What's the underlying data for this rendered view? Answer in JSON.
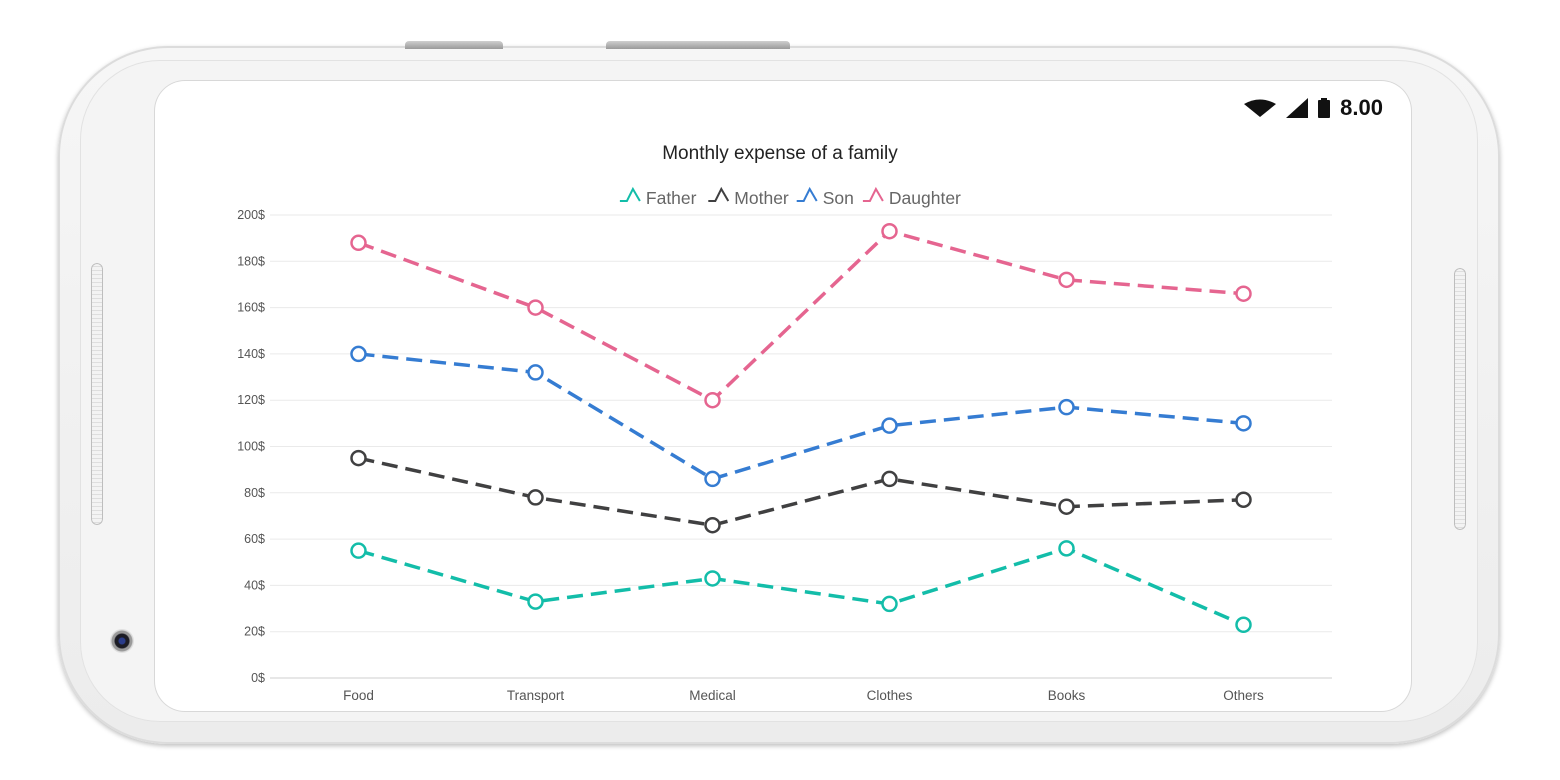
{
  "status_bar": {
    "time": "8.00",
    "icons": [
      "wifi-icon",
      "signal-icon",
      "battery-icon"
    ]
  },
  "chart_data": {
    "type": "line",
    "title": "Monthly expense of a family",
    "categories": [
      "Food",
      "Transport",
      "Medical",
      "Clothes",
      "Books",
      "Others"
    ],
    "series": [
      {
        "name": "Father",
        "color": "#13bda9",
        "values": [
          55,
          33,
          43,
          32,
          56,
          23
        ]
      },
      {
        "name": "Mother",
        "color": "#404041",
        "values": [
          95,
          78,
          66,
          86,
          74,
          77
        ]
      },
      {
        "name": "Son",
        "color": "#357cd2",
        "values": [
          140,
          132,
          86,
          109,
          117,
          110
        ]
      },
      {
        "name": "Daughter",
        "color": "#e56590",
        "values": [
          188,
          160,
          120,
          193,
          172,
          166
        ]
      }
    ],
    "ylim": [
      0,
      200
    ],
    "y_ticks": [
      "0$",
      "20$",
      "40$",
      "60$",
      "80$",
      "100$",
      "120$",
      "140$",
      "160$",
      "180$",
      "200$"
    ],
    "line_style": "dashed",
    "markers": "hollow-circle",
    "legend": "top-center",
    "grid": true
  }
}
